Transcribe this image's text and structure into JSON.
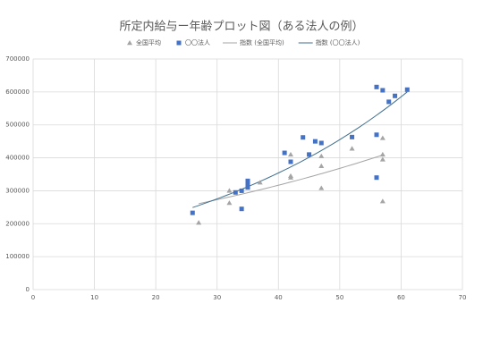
{
  "chart_data": {
    "type": "scatter",
    "title": "所定内給与ー年齢プロット図（ある法人の例）",
    "xlim": [
      0,
      70
    ],
    "xticks": [
      0,
      10,
      20,
      30,
      40,
      50,
      60,
      70
    ],
    "ylim": [
      0,
      700000
    ],
    "yticks": [
      0,
      100000,
      200000,
      300000,
      400000,
      500000,
      600000,
      700000
    ],
    "grid": true,
    "legend": "top",
    "series": [
      {
        "name": "全国平均",
        "color": "#a5a5a5",
        "marker": "triangle",
        "x": [
          27,
          32,
          32,
          37,
          42,
          42,
          42,
          47,
          47,
          47,
          52,
          57,
          57,
          57,
          57
        ],
        "values": [
          203000,
          263000,
          300000,
          325000,
          410000,
          345000,
          340000,
          405000,
          375000,
          308000,
          428000,
          460000,
          410000,
          395000,
          268000
        ],
        "trendline": {
          "type": "exponential",
          "name": "指数 (全国平均)",
          "color": "#a5a5a5"
        }
      },
      {
        "name": "〇〇法人",
        "color": "#4472c4",
        "marker": "square",
        "x": [
          26,
          33,
          34,
          34,
          35,
          35,
          35,
          41,
          42,
          44,
          45,
          46,
          47,
          52,
          56,
          57,
          56,
          56,
          58,
          59,
          61
        ],
        "values": [
          233000,
          295000,
          300000,
          245000,
          320000,
          330000,
          310000,
          415000,
          388000,
          462000,
          410000,
          450000,
          445000,
          463000,
          615000,
          605000,
          470000,
          340000,
          570000,
          588000,
          607000
        ],
        "trendline": {
          "type": "exponential",
          "name": "指数 (〇〇法人)",
          "color": "#3f6f8f"
        }
      }
    ]
  }
}
